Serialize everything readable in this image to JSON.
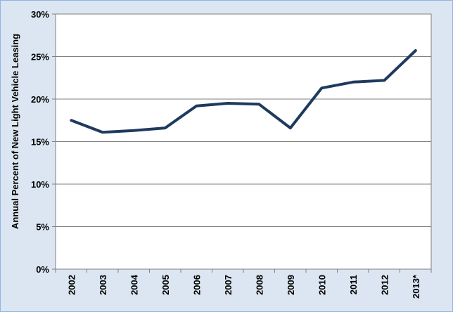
{
  "chart_data": {
    "type": "line",
    "title": "",
    "xlabel": "",
    "ylabel": "Annual Percent of New Light Vehicle Leasing",
    "categories": [
      "2002",
      "2003",
      "2004",
      "2005",
      "2006",
      "2007",
      "2008",
      "2009",
      "2010",
      "2011",
      "2012",
      "2013*"
    ],
    "series": [
      {
        "values": [
          17.5,
          16.1,
          16.3,
          16.6,
          19.2,
          19.5,
          19.4,
          16.6,
          21.3,
          22.0,
          22.2,
          25.7
        ]
      }
    ],
    "ylim": [
      0,
      30
    ],
    "yticks": [
      "0%",
      "5%",
      "10%",
      "15%",
      "20%",
      "25%",
      "30%"
    ],
    "ytick_values": [
      0,
      5,
      10,
      15,
      20,
      25,
      30
    ],
    "grid": true,
    "legend": "none",
    "colors": {
      "line": "#1f3a5f",
      "grid": "#7f7f7f",
      "plot_background": "#ffffff",
      "chart_background": "#dce6f2",
      "border": "#8eb4e3"
    }
  }
}
